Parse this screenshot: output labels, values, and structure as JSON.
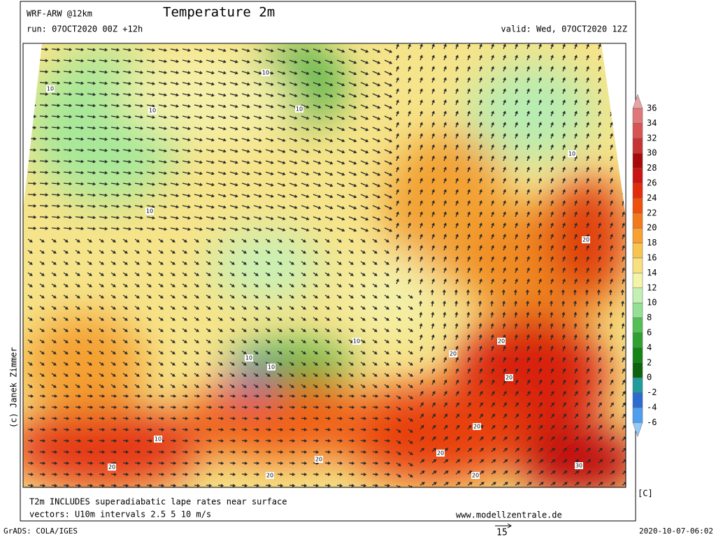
{
  "header": {
    "model": "WRF-ARW @12km",
    "title": "Temperature 2m",
    "run": "run: 07OCT2020 00Z +12h",
    "valid": "valid: Wed, 07OCT2020 12Z"
  },
  "map": {
    "contour_labels": [
      "10",
      "10",
      "10",
      "10",
      "10",
      "10",
      "10",
      "10",
      "10",
      "10",
      "20",
      "20",
      "20",
      "20",
      "20",
      "20",
      "20",
      "20",
      "20",
      "20",
      "30"
    ]
  },
  "legend": {
    "ticks": [
      36,
      34,
      32,
      30,
      28,
      26,
      24,
      22,
      20,
      18,
      16,
      14,
      12,
      10,
      8,
      6,
      4,
      2,
      0,
      -2,
      -4,
      -6
    ],
    "colors": [
      "#e8a4a4",
      "#e07878",
      "#d85454",
      "#c83434",
      "#a80a0a",
      "#cc1414",
      "#e42c0c",
      "#f0500c",
      "#f27a1c",
      "#f8a030",
      "#f8c450",
      "#f8e080",
      "#f4f4a8",
      "#c4f0b4",
      "#94e094",
      "#54c054",
      "#30a030",
      "#148414",
      "#0c640c",
      "#209c9c",
      "#2c6cd0",
      "#509ef0",
      "#94caf8"
    ],
    "unit": "[C]"
  },
  "credit": "(c) Janek Zimmer",
  "footer": {
    "note": "T2m INCLUDES superadiabatic lape rates near surface",
    "vectors": "vectors: U10m intervals 2.5 5 10 m/s",
    "site": "www.modellzentrale.de",
    "grads": "GrADS: COLA/IGES",
    "arrow_scale": "15",
    "timestamp": "2020-10-07-06:02"
  }
}
